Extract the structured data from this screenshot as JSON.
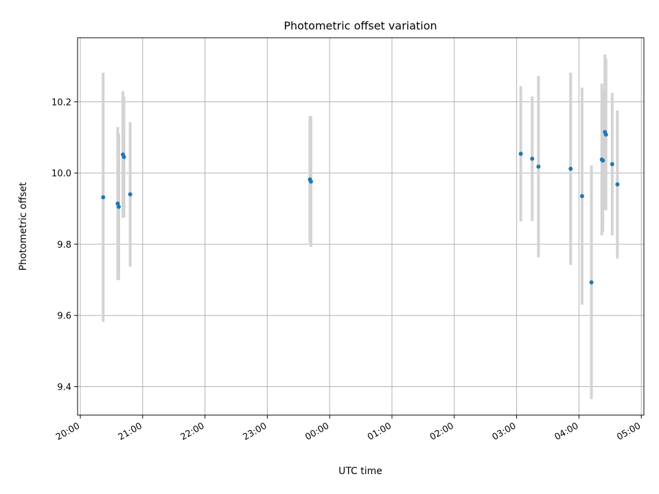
{
  "chart_data": {
    "type": "scatter",
    "title": "Photometric offset variation",
    "xlabel": "UTC time",
    "ylabel": "Photometric offset",
    "x_ticks": [
      "20:00",
      "21:00",
      "22:00",
      "23:00",
      "00:00",
      "01:00",
      "02:00",
      "03:00",
      "04:00",
      "05:00"
    ],
    "y_ticks": [
      "9.4",
      "9.6",
      "9.8",
      "10.0",
      "10.2"
    ],
    "y_tick_values": [
      9.4,
      9.6,
      9.8,
      10.0,
      10.2
    ],
    "ylim": [
      9.32,
      10.38
    ],
    "grid": true,
    "colors": {
      "points": "#1f77b4",
      "errorbars": "#d3d3d3",
      "grid": "#b0b0b0"
    },
    "points": [
      {
        "time": "20:22",
        "y": 9.932,
        "err": 0.35
      },
      {
        "time": "20:36",
        "y": 9.914,
        "err": 0.215
      },
      {
        "time": "20:37",
        "y": 9.905,
        "err": 0.205
      },
      {
        "time": "20:41",
        "y": 10.052,
        "err": 0.178
      },
      {
        "time": "20:42",
        "y": 10.045,
        "err": 0.17
      },
      {
        "time": "20:48",
        "y": 9.94,
        "err": 0.203
      },
      {
        "time": "23:41",
        "y": 9.982,
        "err": 0.178
      },
      {
        "time": "23:42",
        "y": 9.976,
        "err": 0.183
      },
      {
        "time": "03:04",
        "y": 10.054,
        "err": 0.19
      },
      {
        "time": "03:15",
        "y": 10.04,
        "err": 0.175
      },
      {
        "time": "03:21",
        "y": 10.018,
        "err": 0.255
      },
      {
        "time": "03:52",
        "y": 10.012,
        "err": 0.27
      },
      {
        "time": "04:03",
        "y": 9.935,
        "err": 0.305
      },
      {
        "time": "04:12",
        "y": 9.693,
        "err": 0.328
      },
      {
        "time": "04:22",
        "y": 10.038,
        "err": 0.213
      },
      {
        "time": "04:23",
        "y": 10.035,
        "err": 0.2
      },
      {
        "time": "04:25",
        "y": 10.115,
        "err": 0.218
      },
      {
        "time": "04:26",
        "y": 10.108,
        "err": 0.213
      },
      {
        "time": "04:32",
        "y": 10.025,
        "err": 0.2
      },
      {
        "time": "04:37",
        "y": 9.968,
        "err": 0.208
      }
    ]
  }
}
